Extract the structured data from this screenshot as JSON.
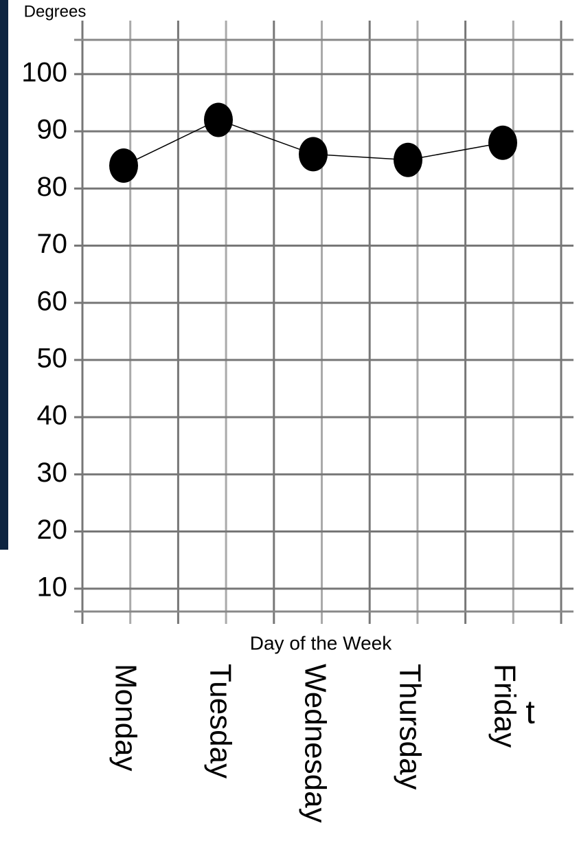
{
  "chart_data": {
    "type": "line",
    "y_label": "Degrees",
    "x_label": "Day of the Week",
    "categories": [
      "Monday",
      "Tuesday",
      "Wednesday",
      "Thursday",
      "Friday"
    ],
    "series": [
      {
        "color": "#000000",
        "values": [
          84,
          92,
          86,
          85,
          88
        ]
      }
    ],
    "ylim": [
      6,
      106
    ],
    "yticks": [
      100,
      90,
      80,
      70,
      60,
      50,
      40,
      30,
      20,
      10
    ],
    "grid": true
  },
  "background_fragment": "t"
}
